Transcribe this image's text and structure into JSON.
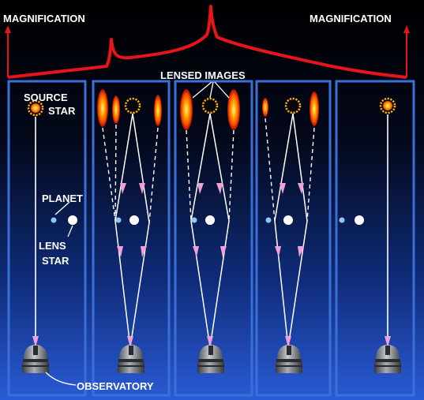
{
  "labels": {
    "magnification_left": "MAGNIFICATION",
    "magnification_right": "MAGNIFICATION",
    "lensed_images": "LENSED IMAGES",
    "source_line1": "SOURCE",
    "source_line2": "STAR",
    "planet": "PLANET",
    "lens_line1": "LENS",
    "lens_line2": "STAR",
    "observatory": "OBSERVATORY"
  },
  "colors": {
    "magnification_curve": "#e8141c",
    "panel_border": "#3a6fd8",
    "light_ray": "#ffffff",
    "ray_arrow": "#f0a0d8",
    "planet": "#8fc6f2",
    "lens_star": "#ffffff",
    "star_glow": "#ffb000",
    "background_top": "#000000",
    "background_bottom": "#2a5bd6"
  },
  "panels": [
    {
      "stage": "before",
      "lensed_images": 0
    },
    {
      "stage": "approach",
      "lensed_images": 3
    },
    {
      "stage": "peak",
      "lensed_images": 3
    },
    {
      "stage": "recede",
      "lensed_images": 3
    },
    {
      "stage": "after",
      "lensed_images": 0
    }
  ],
  "icons": {
    "observatory": "observatory-dome-icon",
    "source_star": "star-burst-icon",
    "lensed_image": "flame-arc-icon"
  }
}
